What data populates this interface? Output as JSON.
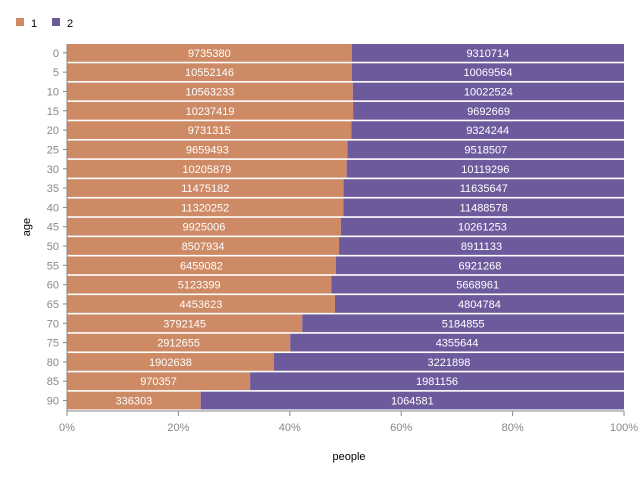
{
  "chart_data": {
    "type": "bar",
    "orientation": "horizontal",
    "stacking": "normalized",
    "title": "",
    "xlabel": "people",
    "ylabel": "age",
    "xlim": [
      0,
      100
    ],
    "x_unit": "%",
    "x_ticks": [
      "0%",
      "20%",
      "40%",
      "60%",
      "80%",
      "100%"
    ],
    "grid": false,
    "legend_position": "top-left",
    "categories": [
      "0",
      "5",
      "10",
      "15",
      "20",
      "25",
      "30",
      "35",
      "40",
      "45",
      "50",
      "55",
      "60",
      "65",
      "70",
      "75",
      "80",
      "85",
      "90"
    ],
    "series": [
      {
        "name": "1",
        "color": "#cd8a64",
        "values": [
          9735380,
          10552146,
          10563233,
          10237419,
          9731315,
          9659493,
          10205879,
          11475182,
          11320252,
          9925006,
          8507934,
          6459082,
          5123399,
          4453623,
          3792145,
          2912655,
          1902638,
          970357,
          336303
        ]
      },
      {
        "name": "2",
        "color": "#6d5a9d",
        "values": [
          9310714,
          10069564,
          10022524,
          9692669,
          9324244,
          9518507,
          10119296,
          11635647,
          11488578,
          10261253,
          8911133,
          6921268,
          5668961,
          4804784,
          5184855,
          4355644,
          3221898,
          1981156,
          1064581
        ]
      }
    ]
  }
}
